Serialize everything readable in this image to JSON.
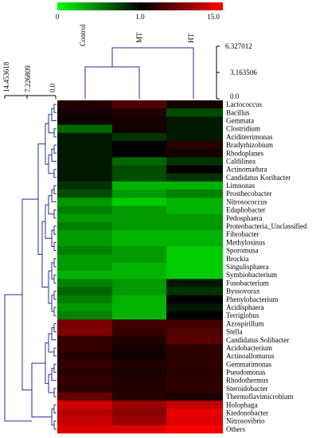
{
  "chart_data": {
    "type": "heatmap",
    "title": "",
    "color_scale": {
      "min": 0,
      "mid": 1,
      "max": 15,
      "min_label": "0",
      "mid_label": "1.0",
      "max_label": "15.0",
      "colors": [
        "#00ff00",
        "#000000",
        "#ff0000"
      ]
    },
    "columns": [
      "Control",
      "MT",
      "HT"
    ],
    "rows": [
      "Lactococcus",
      "Bacillus",
      "Gemmata",
      "Clostridium",
      "Aciditerrimonas",
      "Bradyrhizobium",
      "Rhodoplanes",
      "Caldilinea",
      "Actinomadura",
      "Candidatus Koribacter",
      "Limnonas",
      "Prosthecobacter",
      "Nitrosococcus",
      "Edaphobacter",
      "Pedosphaera",
      "Proteobacteria_Unclassified",
      "Fibrobacter",
      "Methylosinus",
      "Sporomusa",
      "Brockia",
      "Singulisphaera",
      "Symbiobacterium",
      "Fusobacterium",
      "Byssovorax",
      "Phenylobacterium",
      "Acidisphaera",
      "Terriglobus",
      "Azospirillum",
      "Stella",
      "Candidatus Solibacter",
      "Acidobacterium",
      "Actinoallomurus",
      "Gemmatimonas",
      "Pseudomonas",
      "Rhodothermus",
      "Steroidobacter",
      "Thermoflavimicrobium",
      "Holophaga",
      "Ktedonobacter",
      "Nitrosovibrio",
      "Others"
    ],
    "values": [
      [
        1.5,
        3.0,
        1.2
      ],
      [
        1.2,
        1.4,
        0.7
      ],
      [
        1.1,
        1.2,
        0.9
      ],
      [
        0.6,
        1.2,
        0.9
      ],
      [
        0.9,
        0.8,
        0.9
      ],
      [
        0.9,
        1.0,
        1.6
      ],
      [
        0.9,
        1.0,
        1.2
      ],
      [
        0.9,
        0.6,
        0.8
      ],
      [
        0.9,
        0.7,
        1.0
      ],
      [
        0.9,
        0.7,
        0.8
      ],
      [
        0.8,
        0.3,
        0.3
      ],
      [
        0.7,
        0.4,
        0.5
      ],
      [
        0.4,
        0.2,
        0.3
      ],
      [
        0.5,
        0.4,
        0.3
      ],
      [
        0.4,
        0.4,
        0.4
      ],
      [
        0.5,
        0.4,
        0.4
      ],
      [
        0.4,
        0.3,
        0.3
      ],
      [
        0.4,
        0.3,
        0.3
      ],
      [
        0.5,
        0.4,
        0.2
      ],
      [
        0.4,
        0.4,
        0.2
      ],
      [
        0.4,
        0.3,
        0.2
      ],
      [
        0.3,
        0.3,
        0.2
      ],
      [
        0.5,
        0.4,
        0.9
      ],
      [
        0.6,
        0.4,
        0.8
      ],
      [
        0.5,
        0.3,
        1.0
      ],
      [
        0.4,
        0.3,
        0.9
      ],
      [
        0.5,
        0.3,
        1.0
      ],
      [
        5.0,
        2.5,
        2.5
      ],
      [
        5.5,
        2.0,
        3.0
      ],
      [
        2.0,
        1.5,
        3.5
      ],
      [
        2.0,
        1.2,
        1.8
      ],
      [
        1.5,
        1.1,
        1.7
      ],
      [
        2.0,
        1.5,
        1.8
      ],
      [
        1.6,
        1.3,
        1.6
      ],
      [
        2.0,
        1.5,
        1.7
      ],
      [
        1.8,
        1.5,
        1.8
      ],
      [
        4.0,
        1.6,
        1.4
      ],
      [
        11.0,
        7.0,
        10.0
      ],
      [
        9.0,
        6.0,
        13.0
      ],
      [
        10.0,
        7.0,
        12.0
      ],
      [
        12.0,
        12.0,
        14.5
      ]
    ],
    "column_dendrogram_ticks": [
      "6.327012",
      "3.163506",
      "0.0"
    ],
    "row_dendrogram_ticks": [
      "14.453618",
      "7.226809",
      "0.0"
    ]
  }
}
